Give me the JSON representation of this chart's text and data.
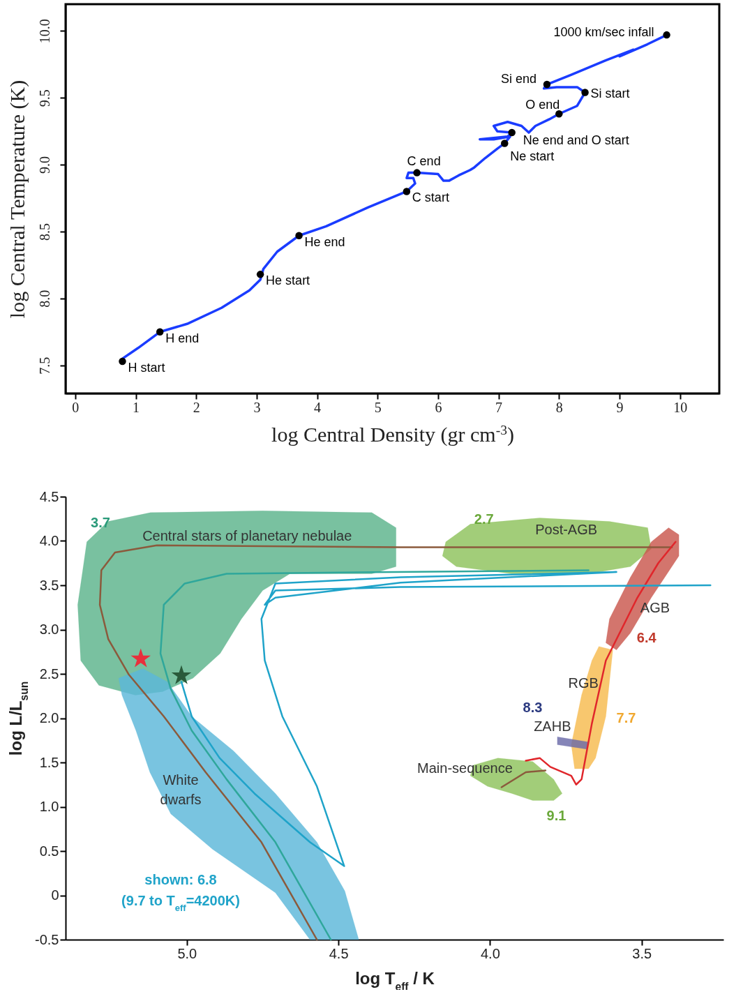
{
  "chart_data": [
    {
      "type": "line",
      "xlabel": "log Central Density (gr cm$^{-3}$)",
      "ylabel": "log Central Temperature (K)",
      "xlim": [
        -0.16,
        10.65
      ],
      "ylim": [
        7.29,
        10.2
      ],
      "xticks": [
        0,
        1,
        2,
        3,
        4,
        5,
        6,
        7,
        8,
        9,
        10
      ],
      "yticks": [
        7.5,
        {
          "value": 8,
          "label": "8.0"
        },
        8.5,
        {
          "value": 9,
          "label": "9.0"
        },
        9.5,
        {
          "value": 10,
          "label": "10.0"
        }
      ],
      "series": [
        {
          "type": "line",
          "color": "#1a3cff",
          "x": [
            0.78,
            1.04,
            1.4,
            1.85,
            2.42,
            2.88,
            3.06,
            3.11,
            3.34,
            3.7,
            4.15,
            4.84,
            5.48,
            5.62,
            5.59,
            5.48,
            5.51,
            5.65,
            6.0,
            6.09,
            6.18,
            6.34,
            6.53,
            6.6,
            6.78,
            6.98,
            7.1,
            7.19,
            6.92,
            6.69,
            6.92,
            7.15,
            7.22,
            6.98,
            6.92,
            7.15,
            7.38,
            7.5,
            7.61,
            7.84,
            8.0,
            8.3,
            8.43,
            8.3,
            7.96,
            7.75,
            7.8,
            8.19,
            8.77,
            9.23,
            9.0,
            9.46,
            9.78
          ],
          "values": [
            7.55,
            7.63,
            7.75,
            7.81,
            7.93,
            8.06,
            8.14,
            8.22,
            8.35,
            8.47,
            8.54,
            8.68,
            8.8,
            8.86,
            8.9,
            8.9,
            8.94,
            8.94,
            8.93,
            8.88,
            8.88,
            8.92,
            8.96,
            8.98,
            9.05,
            9.12,
            9.16,
            9.21,
            9.19,
            9.19,
            9.2,
            9.21,
            9.24,
            9.25,
            9.29,
            9.32,
            9.29,
            9.24,
            9.29,
            9.34,
            9.38,
            9.44,
            9.54,
            9.58,
            9.58,
            9.57,
            9.6,
            9.67,
            9.78,
            9.86,
            9.81,
            9.9,
            9.97
          ]
        },
        {
          "type": "scatter",
          "marker": "circle",
          "color": "#000000",
          "x": [
            0.78,
            1.4,
            3.06,
            3.7,
            5.48,
            5.65,
            7.1,
            7.22,
            8.0,
            8.43,
            7.8,
            9.78
          ],
          "values": [
            7.53,
            7.75,
            8.18,
            8.47,
            8.8,
            8.94,
            9.16,
            9.24,
            9.38,
            9.54,
            9.6,
            9.97
          ]
        }
      ],
      "annotations": [
        {
          "text": "H start",
          "x": 0.78,
          "y": 7.53
        },
        {
          "text": "H end",
          "x": 1.4,
          "y": 7.75
        },
        {
          "text": "He start",
          "x": 3.06,
          "y": 8.18
        },
        {
          "text": "He end",
          "x": 3.7,
          "y": 8.47
        },
        {
          "text": "C start",
          "x": 5.48,
          "y": 8.8
        },
        {
          "text": "C end",
          "x": 5.65,
          "y": 8.94
        },
        {
          "text": "Ne start",
          "x": 7.1,
          "y": 9.16
        },
        {
          "text": "Ne end and O start",
          "x": 7.22,
          "y": 9.24
        },
        {
          "text": "O end",
          "x": 8.0,
          "y": 9.38
        },
        {
          "text": "Si start",
          "x": 8.43,
          "y": 9.54
        },
        {
          "text": "Si end",
          "x": 7.8,
          "y": 9.6
        },
        {
          "text": "1000 km/sec infall",
          "x": 9.78,
          "y": 9.97
        }
      ]
    },
    {
      "type": "line",
      "xlabel": "log T$_{eff}$ / K",
      "ylabel": "log L/L$_{sun}$",
      "xlim": [
        5.4,
        3.23
      ],
      "ylim": [
        -0.5,
        4.5
      ],
      "xticks": [
        {
          "value": 5,
          "label": "5.0"
        },
        4.5,
        {
          "value": 4,
          "label": "4.0"
        },
        3.5
      ],
      "yticks": [
        -0.5,
        0,
        0.5,
        {
          "value": 1,
          "label": "1.0"
        },
        1.5,
        {
          "value": 2,
          "label": "2.0"
        },
        2.5,
        {
          "value": 3,
          "label": "3.0"
        },
        3.5,
        {
          "value": 4,
          "label": "4.0"
        },
        4.5
      ],
      "series": [
        {
          "type": "area",
          "color": "#5cb38b",
          "x": [
            5.33,
            5.26,
            5.12,
            4.75,
            4.39,
            4.31,
            4.31,
            4.39,
            4.66,
            4.75,
            4.82,
            4.89,
            4.98,
            5.08,
            5.17,
            5.29,
            5.35,
            5.36,
            5.34
          ],
          "values": [
            3.99,
            4.22,
            4.32,
            4.34,
            4.32,
            4.15,
            3.71,
            3.63,
            3.63,
            3.44,
            3.12,
            2.73,
            2.45,
            2.3,
            2.26,
            2.37,
            2.65,
            3.28,
            3.75
          ]
        },
        {
          "type": "area",
          "color": "#5bb7d9",
          "x": [
            5.225,
            5.145,
            5.064,
            4.984,
            4.846,
            4.708,
            4.571,
            4.479,
            4.433,
            4.594,
            4.708,
            4.915,
            5.053,
            5.122,
            5.168,
            5.214
          ],
          "values": [
            2.45,
            2.56,
            2.41,
            2.02,
            1.63,
            1.15,
            0.6,
            0.05,
            -0.5,
            -0.5,
            0.03,
            0.52,
            0.92,
            1.39,
            1.86,
            2.26
          ]
        },
        {
          "type": "area",
          "color": "#8ec25b",
          "x": [
            4.146,
            4.065,
            3.836,
            3.606,
            3.48,
            3.468,
            3.537,
            3.675,
            3.928,
            4.111,
            4.157
          ],
          "values": [
            3.99,
            4.19,
            4.26,
            4.22,
            4.15,
            3.91,
            3.71,
            3.63,
            3.63,
            3.71,
            3.83
          ]
        },
        {
          "type": "area",
          "color": "#c9574d",
          "x": [
            3.411,
            3.377,
            3.377,
            3.468,
            3.537,
            3.583,
            3.618,
            3.606,
            3.537,
            3.468
          ],
          "values": [
            4.15,
            4.07,
            3.83,
            3.36,
            2.96,
            2.77,
            2.85,
            3.12,
            3.59,
            3.99
          ]
        },
        {
          "type": "area",
          "color": "#f6bb4e",
          "x": [
            3.641,
            3.595,
            3.618,
            3.652,
            3.675,
            3.721,
            3.732,
            3.698,
            3.664
          ],
          "values": [
            2.81,
            2.77,
            2.02,
            1.55,
            1.43,
            1.43,
            1.7,
            2.26,
            2.65
          ]
        },
        {
          "type": "area",
          "color": "#6a6aa8",
          "x": [
            3.778,
            3.675,
            3.68,
            3.778
          ],
          "values": [
            1.79,
            1.73,
            1.65,
            1.7
          ]
        },
        {
          "type": "area",
          "color": "#8ec25b",
          "x": [
            4.054,
            3.974,
            3.859,
            3.79,
            3.762,
            3.79,
            3.859,
            3.928,
            4.008,
            4.065
          ],
          "values": [
            1.47,
            1.55,
            1.51,
            1.31,
            1.15,
            1.07,
            1.07,
            1.15,
            1.23,
            1.35
          ]
        },
        {
          "type": "line",
          "color": "#8b5a3c",
          "x": [
            3.4,
            4.295,
            5.099,
            5.237,
            5.282,
            5.287,
            5.259,
            5.191,
            5.076,
            4.938,
            4.754,
            4.571
          ],
          "values": [
            3.93,
            3.93,
            3.95,
            3.87,
            3.67,
            3.28,
            2.89,
            2.49,
            2.02,
            1.39,
            0.6,
            -0.5
          ]
        },
        {
          "type": "line",
          "color": "#8b5a3c",
          "x": [
            3.962,
            3.882,
            3.817
          ],
          "values": [
            1.22,
            1.39,
            1.41
          ]
        },
        {
          "type": "line",
          "color": "#e0262b",
          "x": [
            3.882,
            3.836,
            3.801,
            3.732,
            3.716,
            3.698,
            3.664,
            3.618,
            3.583,
            3.514,
            3.445,
            3.388
          ],
          "values": [
            1.52,
            1.55,
            1.45,
            1.35,
            1.25,
            1.31,
            1.94,
            2.65,
            2.89,
            3.36,
            3.75,
            3.99
          ]
        },
        {
          "type": "line",
          "color": "#2fa79b",
          "x": [
            3.675,
            4.318,
            4.869,
            5.007,
            5.076,
            5.087,
            5.053,
            4.984,
            4.869,
            4.708,
            4.525
          ],
          "values": [
            3.67,
            3.65,
            3.63,
            3.52,
            3.28,
            2.73,
            2.33,
            1.86,
            1.31,
            0.6,
            -0.5
          ]
        },
        {
          "type": "line",
          "color": "#1fa3c9",
          "x": [
            3.273,
            4.295,
            4.708,
            4.743,
            4.708,
            4.295,
            3.583,
            4.295,
            4.708,
            4.754,
            4.743,
            4.685,
            4.571,
            4.481,
            4.594,
            4.777,
            4.892,
            4.984,
            5.018
          ],
          "values": [
            3.5,
            3.48,
            3.44,
            3.28,
            3.36,
            3.53,
            3.65,
            3.59,
            3.52,
            3.12,
            2.65,
            2.02,
            1.23,
            0.33,
            0.6,
            1.15,
            1.55,
            2.02,
            2.41
          ]
        },
        {
          "type": "scatter",
          "marker": "star",
          "color": "#e8303c",
          "x": [
            5.152
          ],
          "values": [
            2.67
          ]
        },
        {
          "type": "scatter",
          "marker": "star",
          "color": "#2a5a3a",
          "x": [
            5.018
          ],
          "values": [
            2.48
          ]
        }
      ],
      "annotations": [
        "3.7",
        "Central stars of planetary nebulae",
        "2.7",
        "Post-AGB",
        "AGB",
        "6.4",
        "RGB",
        "8.3",
        "ZAHB",
        "7.7",
        "Main-sequence",
        "9.1",
        "White",
        "dwarfs",
        "shown: 6.8",
        "(9.7 to T$_{eff}$=4200K)"
      ]
    }
  ]
}
